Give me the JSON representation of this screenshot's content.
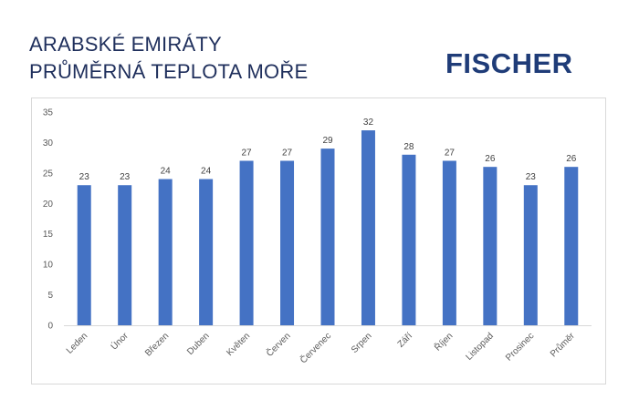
{
  "header": {
    "title_line1": "ARABSKÉ EMIRÁTY",
    "title_line2": "PRŮMĚRNÁ TEPLOTA MOŘE",
    "logo_text": "FISCHER"
  },
  "colors": {
    "bar": "#4472c4",
    "title": "#1f2f5c",
    "logo": "#1f3c78"
  },
  "chart_data": {
    "type": "bar",
    "title": "ARABSKÉ EMIRÁTY PRŮMĚRNÁ TEPLOTA MOŘE",
    "xlabel": "",
    "ylabel": "",
    "categories": [
      "Leden",
      "Únor",
      "Březen",
      "Duben",
      "Květen",
      "Červen",
      "Červenec",
      "Srpen",
      "Září",
      "Říjen",
      "Listopad",
      "Prosinec",
      "Průměr"
    ],
    "values": [
      23,
      23,
      24,
      24,
      27,
      27,
      29,
      32,
      28,
      27,
      26,
      23,
      26
    ],
    "ylim": [
      0,
      35
    ],
    "yticks": [
      0,
      5,
      10,
      15,
      20,
      25,
      30,
      35
    ],
    "grid": false,
    "data_labels": true,
    "legend": "none"
  }
}
